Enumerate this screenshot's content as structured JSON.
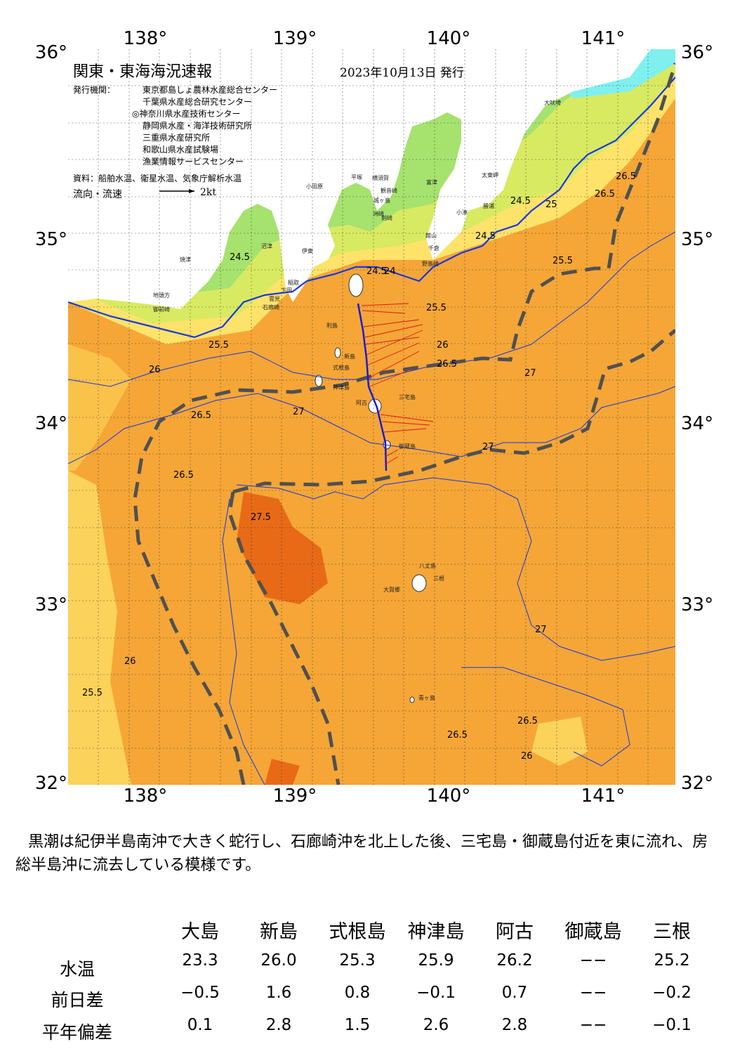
{
  "map": {
    "title": "関東・東海海況速報",
    "issued": "2023年10月13日 発行",
    "institutions_label": "発行機関：",
    "institutions": [
      "東京都島しょ農林水産総合センター",
      "千葉県水産総合研究センター",
      "◎神奈川県水産技術センター",
      "静岡県水産・海洋技術研究所",
      "三重県水産研究所",
      "和歌山県水産試験場",
      "漁業情報サービスセンター"
    ],
    "sources": "資料：船舶水温、衛星水温、気象庁解析水温",
    "flow_label": "流向・流速",
    "flow_scale": "2kt",
    "lon_ticks": [
      "138°",
      "139°",
      "140°",
      "141°"
    ],
    "lat_ticks": [
      "36°",
      "35°",
      "34°",
      "33°",
      "32°"
    ],
    "contour_labels": [
      "24",
      "24.5",
      "25",
      "25.5",
      "26",
      "26.5",
      "27",
      "27.5"
    ],
    "places": [
      "大吠埼",
      "太東岬",
      "勝浦",
      "小湊",
      "館山",
      "千倉",
      "野島崎",
      "富津",
      "観音崎",
      "横須賀",
      "平塚",
      "小田原",
      "城ヶ島",
      "剣崎",
      "洲崎",
      "伊東",
      "稲取",
      "下田",
      "石廊崎",
      "雲見",
      "沼津",
      "焼津",
      "地頭方",
      "御前崎",
      "利島",
      "新島",
      "式根島",
      "神津島",
      "阿古",
      "三宅島",
      "御蔵島",
      "八丈島",
      "三根",
      "大賀郷",
      "青ヶ島"
    ]
  },
  "summary": "黒潮は紀伊半島南沖で大きく蛇行し、石廊崎沖を北上した後、三宅島・御蔵島付近を東に流れ、房総半島沖に流去している模様です。",
  "table": {
    "stations": [
      "大島",
      "新島",
      "式根島",
      "神津島",
      "阿古",
      "御蔵島",
      "三根"
    ],
    "rows": [
      {
        "label": "水温",
        "values": [
          "23.3",
          "26.0",
          "25.3",
          "25.9",
          "26.2",
          "−−",
          "25.2"
        ]
      },
      {
        "label": "前日差",
        "values": [
          "−0.5",
          "1.6",
          "0.8",
          "−0.1",
          "0.7",
          "−−",
          "−0.2"
        ]
      },
      {
        "label": "平年偏差",
        "values": [
          "0.1",
          "2.8",
          "1.5",
          "2.6",
          "2.8",
          "−−",
          "−0.1"
        ]
      }
    ]
  }
}
